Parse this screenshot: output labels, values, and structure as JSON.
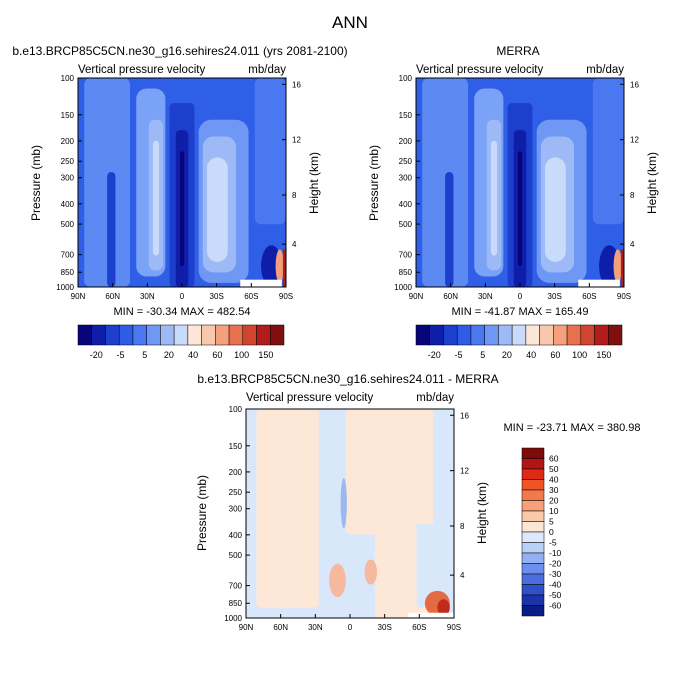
{
  "figure": {
    "title": "ANN"
  },
  "palette": {
    "cbar_full": [
      "#08057a",
      "#0f1ea8",
      "#1c3fce",
      "#2e5ce6",
      "#4a78f0",
      "#6f98f5",
      "#9dbaf7",
      "#c9dbfa",
      "#fbe6d8",
      "#f9c8ac",
      "#f4a07c",
      "#e8704f",
      "#d04430",
      "#b01d1a",
      "#801010"
    ],
    "cbar_diff": [
      "#7f0a0a",
      "#b31414",
      "#dd2a14",
      "#f05326",
      "#f4784c",
      "#f7a07a",
      "#fac9ab",
      "#fde6d4",
      "#dce8fb",
      "#b9d0f7",
      "#93b0f2",
      "#6c8eec",
      "#4b6de0",
      "#3050c8",
      "#1a35ac",
      "#0c1c86"
    ],
    "field_base": "#2f5fe6",
    "diff_base": "#d9e7fa"
  },
  "chart_data": [
    {
      "type": "heatmap",
      "panel": "case",
      "title": "b.e13.BRCP85C5CN.ne30_g16.sehires24.011 (yrs 2081-2100)",
      "subtitle_left": "Vertical pressure velocity",
      "subtitle_right": "mb/day",
      "ylabel": "Pressure (mb)",
      "ylabel_right": "Height (km)",
      "x_ticks": [
        "90N",
        "60N",
        "30N",
        "0",
        "30S",
        "60S",
        "90S"
      ],
      "y_ticks": [
        "100",
        "150",
        "200",
        "250",
        "300",
        "400",
        "500",
        "700",
        "850",
        "1000"
      ],
      "height_ticks": [
        "16",
        "12",
        "8",
        "4"
      ],
      "stats": "MIN = -30.34   MAX = 482.54",
      "colorbar_labels": [
        "-20",
        "-5",
        "5",
        "20",
        "40",
        "60",
        "100",
        "150"
      ]
    },
    {
      "type": "heatmap",
      "panel": "obs",
      "title": "MERRA",
      "subtitle_left": "Vertical pressure velocity",
      "subtitle_right": "mb/day",
      "ylabel": "Pressure (mb)",
      "ylabel_right": "Height (km)",
      "x_ticks": [
        "90N",
        "60N",
        "30N",
        "0",
        "30S",
        "60S",
        "90S"
      ],
      "y_ticks": [
        "100",
        "150",
        "200",
        "250",
        "300",
        "400",
        "500",
        "700",
        "850",
        "1000"
      ],
      "height_ticks": [
        "16",
        "12",
        "8",
        "4"
      ],
      "stats": "MIN = -41.87   MAX = 165.49",
      "colorbar_labels": [
        "-20",
        "-5",
        "5",
        "20",
        "40",
        "60",
        "100",
        "150"
      ]
    },
    {
      "type": "heatmap",
      "panel": "diff",
      "title": "b.e13.BRCP85C5CN.ne30_g16.sehires24.011 - MERRA",
      "subtitle_left": "Vertical pressure velocity",
      "subtitle_right": "mb/day",
      "ylabel": "Pressure (mb)",
      "ylabel_right": "Height (km)",
      "x_ticks": [
        "90N",
        "60N",
        "30N",
        "0",
        "30S",
        "60S",
        "90S"
      ],
      "y_ticks": [
        "100",
        "150",
        "200",
        "250",
        "300",
        "400",
        "500",
        "700",
        "850",
        "1000"
      ],
      "height_ticks": [
        "16",
        "12",
        "8",
        "4"
      ],
      "stats": "MIN = -23.71  MAX = 380.98",
      "colorbar_labels": [
        "60",
        "50",
        "40",
        "30",
        "20",
        "10",
        "5",
        "0",
        "-5",
        "-10",
        "-20",
        "-30",
        "-40",
        "-50",
        "-60"
      ]
    }
  ]
}
